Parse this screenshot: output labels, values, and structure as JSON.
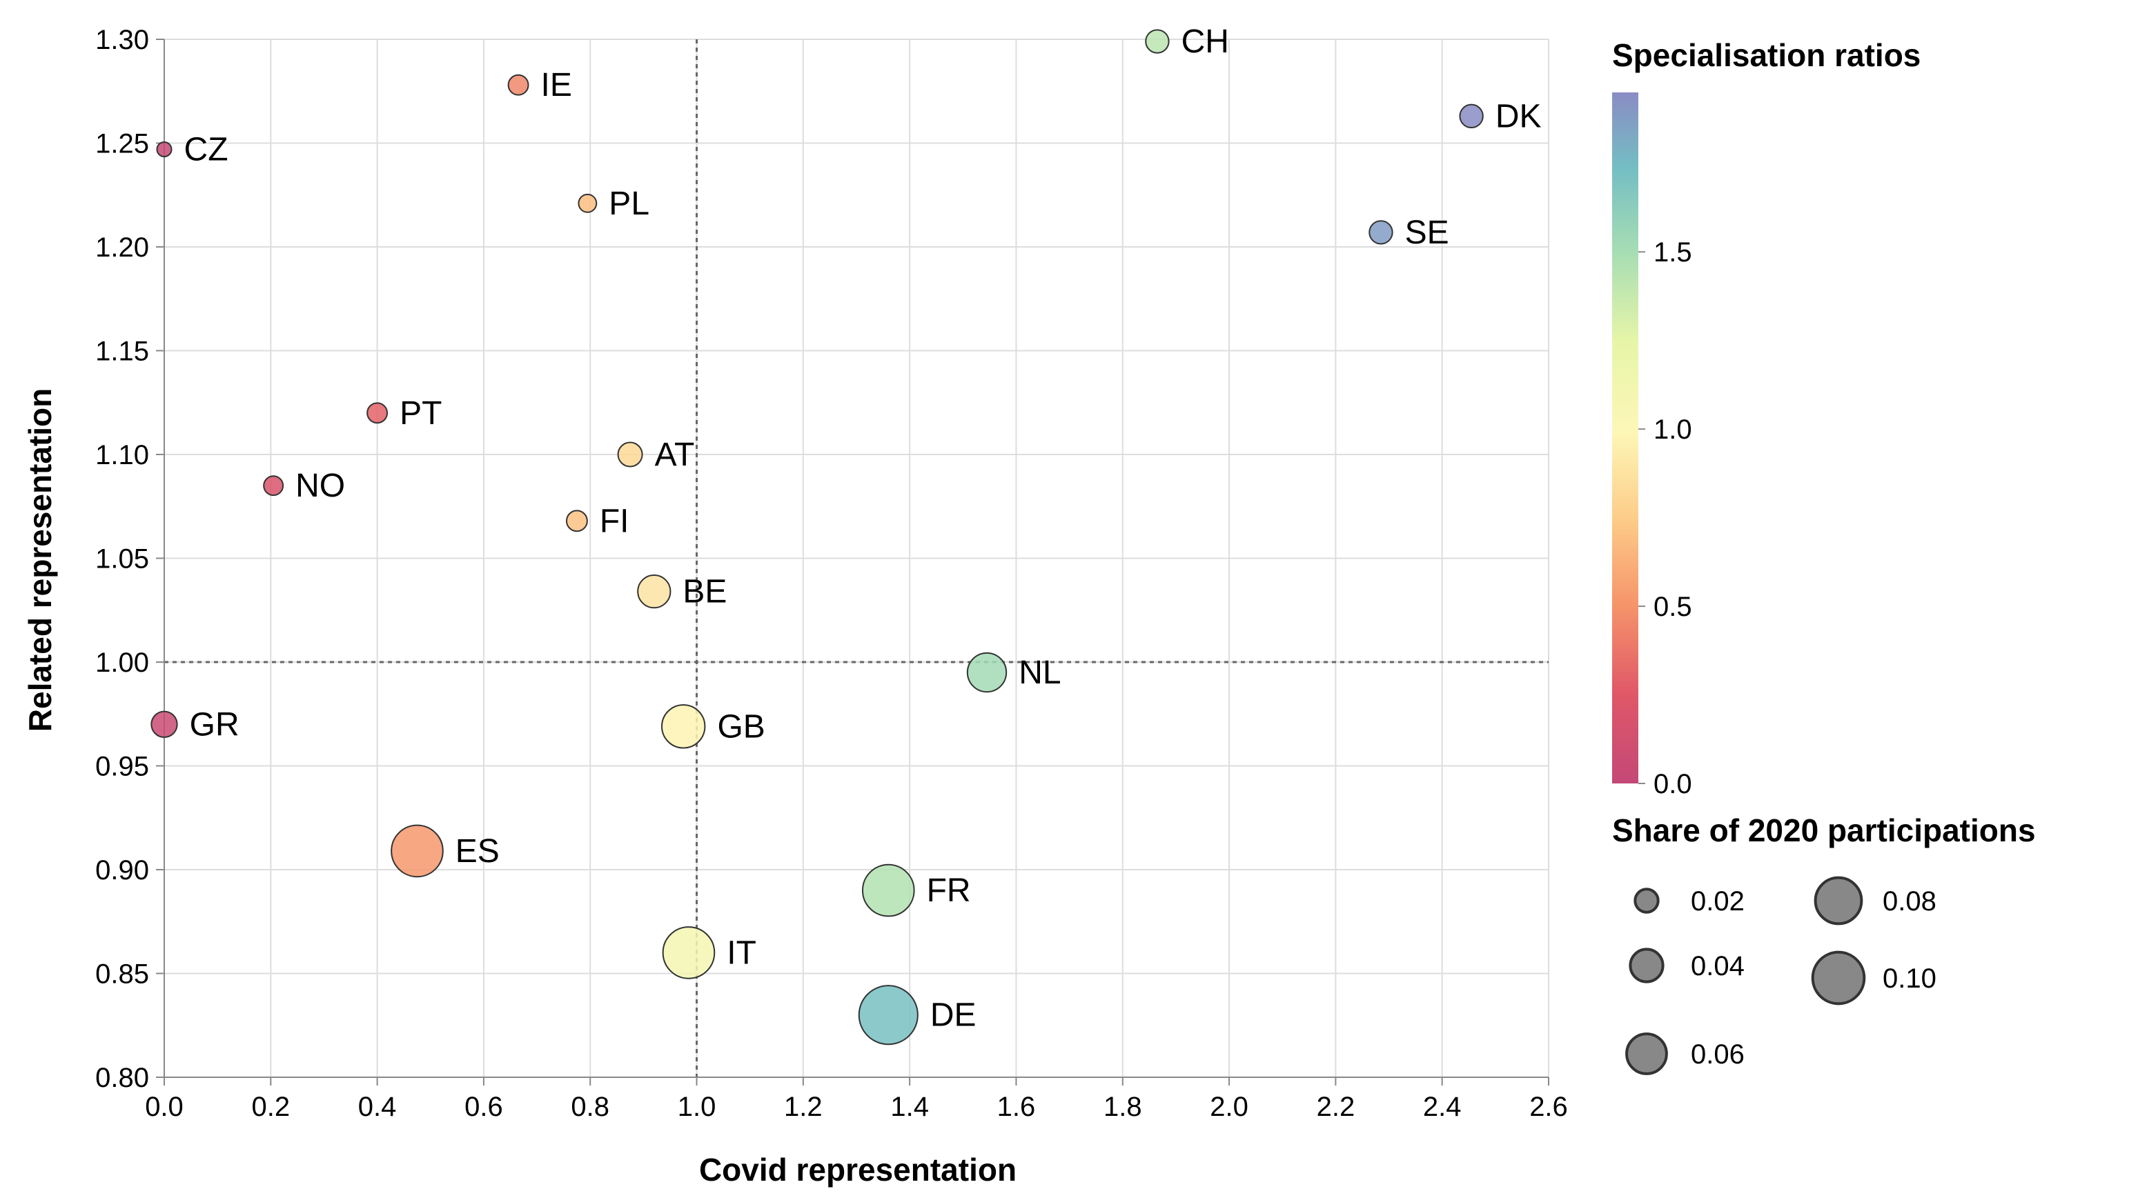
{
  "chart_data": {
    "type": "scatter",
    "xlabel": "Covid representation",
    "ylabel": "Related representation",
    "xlim": [
      0,
      2.6
    ],
    "ylim": [
      0.8,
      1.3
    ],
    "x_ticks": [
      "0.0",
      "0.2",
      "0.4",
      "0.6",
      "0.8",
      "1.0",
      "1.2",
      "1.4",
      "1.6",
      "1.8",
      "2.0",
      "2.2",
      "2.4",
      "2.6"
    ],
    "y_ticks": [
      "0.80",
      "0.85",
      "0.90",
      "0.95",
      "1.00",
      "1.05",
      "1.10",
      "1.15",
      "1.20",
      "1.25",
      "1.30"
    ],
    "reference_lines": {
      "x": 1.0,
      "y": 1.0,
      "style": "dotted"
    },
    "grid": true,
    "points": [
      {
        "label": "CH",
        "x": 1.865,
        "y": 1.299,
        "color_value": 1.42,
        "size_value": 0.02
      },
      {
        "label": "IE",
        "x": 0.665,
        "y": 1.278,
        "color_value": 0.45,
        "size_value": 0.015
      },
      {
        "label": "DK",
        "x": 2.455,
        "y": 1.263,
        "color_value": 1.95,
        "size_value": 0.02
      },
      {
        "label": "CZ",
        "x": 0.0,
        "y": 1.247,
        "color_value": 0.02,
        "size_value": 0.008
      },
      {
        "label": "PL",
        "x": 0.795,
        "y": 1.221,
        "color_value": 0.68,
        "size_value": 0.012
      },
      {
        "label": "SE",
        "x": 2.285,
        "y": 1.207,
        "color_value": 1.88,
        "size_value": 0.02
      },
      {
        "label": "PT",
        "x": 0.4,
        "y": 1.12,
        "color_value": 0.3,
        "size_value": 0.015
      },
      {
        "label": "AT",
        "x": 0.875,
        "y": 1.1,
        "color_value": 0.82,
        "size_value": 0.022
      },
      {
        "label": "NO",
        "x": 0.205,
        "y": 1.085,
        "color_value": 0.18,
        "size_value": 0.014
      },
      {
        "label": "FI",
        "x": 0.775,
        "y": 1.068,
        "color_value": 0.7,
        "size_value": 0.016
      },
      {
        "label": "BE",
        "x": 0.92,
        "y": 1.034,
        "color_value": 0.88,
        "size_value": 0.04
      },
      {
        "label": "NL",
        "x": 1.545,
        "y": 0.995,
        "color_value": 1.52,
        "size_value": 0.057
      },
      {
        "label": "GR",
        "x": 0.0,
        "y": 0.97,
        "color_value": 0.05,
        "size_value": 0.025
      },
      {
        "label": "GB",
        "x": 0.975,
        "y": 0.969,
        "color_value": 0.97,
        "size_value": 0.07
      },
      {
        "label": "ES",
        "x": 0.475,
        "y": 0.909,
        "color_value": 0.52,
        "size_value": 0.1
      },
      {
        "label": "FR",
        "x": 1.36,
        "y": 0.89,
        "color_value": 1.45,
        "size_value": 0.1
      },
      {
        "label": "IT",
        "x": 0.985,
        "y": 0.86,
        "color_value": 1.1,
        "size_value": 0.1
      },
      {
        "label": "DE",
        "x": 1.36,
        "y": 0.83,
        "color_value": 1.72,
        "size_value": 0.13
      }
    ],
    "color_legend": {
      "title": "Specialisation ratios",
      "domain": [
        0,
        1.95
      ],
      "ticks": [
        "0.0",
        "0.5",
        "1.0",
        "1.5"
      ],
      "scheme": "spectral"
    },
    "size_legend": {
      "title": "Share of 2020 participations",
      "entries": [
        "0.02",
        "0.04",
        "0.06",
        "0.08",
        "0.10"
      ]
    }
  }
}
